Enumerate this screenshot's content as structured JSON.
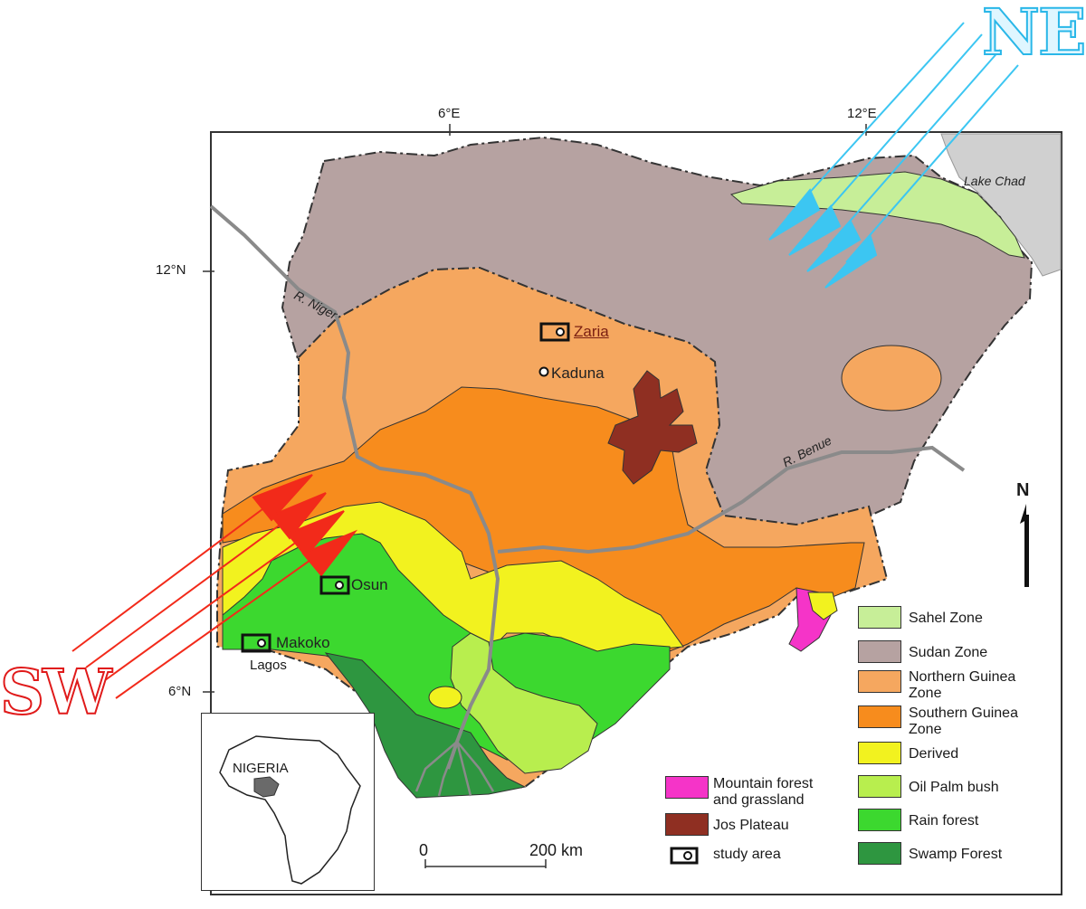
{
  "map": {
    "directions": {
      "northeast": "NE",
      "southwest": "SW"
    },
    "graticule": {
      "lon_labels": [
        "6°E",
        "12°E"
      ],
      "lat_labels": [
        "12°N",
        "6°N"
      ]
    },
    "rivers": [
      "R. Niger",
      "R. Benue"
    ],
    "places": {
      "lake": "Lake Chad",
      "zaria": "Zaria",
      "kaduna": "Kaduna",
      "osun": "Osun",
      "makoko": "Makoko",
      "lagos": "Lagos"
    },
    "north_label": "N",
    "scale": {
      "start": "0",
      "end": "200 km"
    },
    "inset_label": "NIGERIA",
    "colors": {
      "sahel": "#c7ee98",
      "sudan": "#b6a2a1",
      "northern_guinea": "#f5a75f",
      "southern_guinea": "#f78c1d",
      "derived": "#f2f21f",
      "oil_palm": "#b8ee4e",
      "rain_forest": "#3cd82f",
      "swamp": "#2e9640",
      "mountain": "#f534c8",
      "jos": "#8f2f22",
      "wind_ne": "#3cc6f2",
      "wind_sw": "#f22a1a"
    }
  },
  "legend": {
    "left": [
      {
        "label": "Mountain forest\nand grassland",
        "color": "#f534c8"
      },
      {
        "label": "Jos Plateau",
        "color": "#8f2f22"
      },
      {
        "label": "study area",
        "icon": "study-area-icon"
      }
    ],
    "right": [
      {
        "label": "Sahel Zone",
        "color": "#c7ee98"
      },
      {
        "label": "Sudan Zone",
        "color": "#b6a2a1"
      },
      {
        "label": "Northern Guinea\nZone",
        "color": "#f5a75f"
      },
      {
        "label": "Southern Guinea\nZone",
        "color": "#f78c1d"
      },
      {
        "label": "Derived",
        "color": "#f2f21f"
      },
      {
        "label": "Oil Palm bush",
        "color": "#b8ee4e"
      },
      {
        "label": "Rain forest",
        "color": "#3cd82f"
      },
      {
        "label": "Swamp Forest",
        "color": "#2e9640"
      }
    ]
  }
}
